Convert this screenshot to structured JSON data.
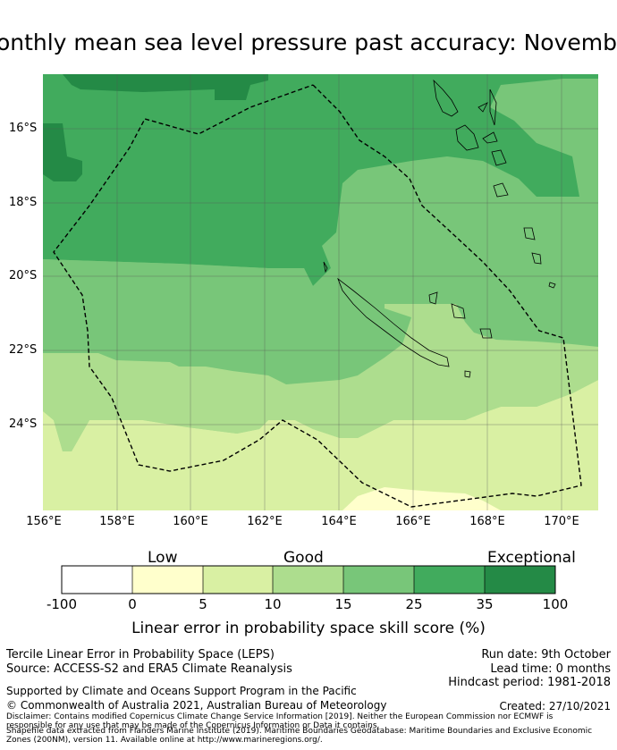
{
  "title": "Monthly mean sea level pressure past accuracy: November",
  "map": {
    "lat_labels": [
      "16°S",
      "18°S",
      "20°S",
      "22°S",
      "24°S"
    ],
    "lon_labels": [
      "156°E",
      "158°E",
      "160°E",
      "162°E",
      "164°E",
      "166°E",
      "168°E",
      "170°E"
    ],
    "boundary": "Maritime boundaries and exclusive economic zone (dashed)",
    "colors": {
      "band_35_100": "#248a46",
      "band_25_35": "#41ab5d",
      "band_15_25": "#78c679",
      "band_10_15": "#addd8e",
      "band_5_10": "#d9f0a3",
      "band_0_5": "#ffffcc",
      "band_neg": "#ffffff"
    }
  },
  "colorbar": {
    "categories": [
      "Low",
      "Good",
      "Exceptional"
    ],
    "ticks": [
      "-100",
      "0",
      "5",
      "10",
      "15",
      "25",
      "35",
      "100"
    ],
    "label": "Linear error in probability space skill score (%)"
  },
  "footer": {
    "left_line1": "Tercile Linear Error in Probability Space (LEPS)",
    "left_line2": "Source: ACCESS-S2 and ERA5 Climate Reanalysis",
    "run_date": "Run date: 9th October",
    "lead_time": "Lead time: 0 months",
    "hindcast": "Hindcast period: 1981-2018",
    "support": "Supported by Climate and Oceans Support Program in the Pacific",
    "copyright": "© Commonwealth of Australia 2021, Australian Bureau of Meteorology",
    "created": "Created: 27/10/2021",
    "disclaimer": "Disclaimer: Contains modified Copernicus Climate Change Service Information [2019]. Neither the European Commission nor ECMWF is responsible for any use that may be made of the Copernicus Information or Data it contains.",
    "shapefile": "Shapefile data extracted from Flanders Marine Institute (2019). Maritime Boundaries Geodatabase: Maritime Boundaries and Exclusive Economic Zones (200NM), version 11. Available online at http://www.marineregions.org/."
  }
}
